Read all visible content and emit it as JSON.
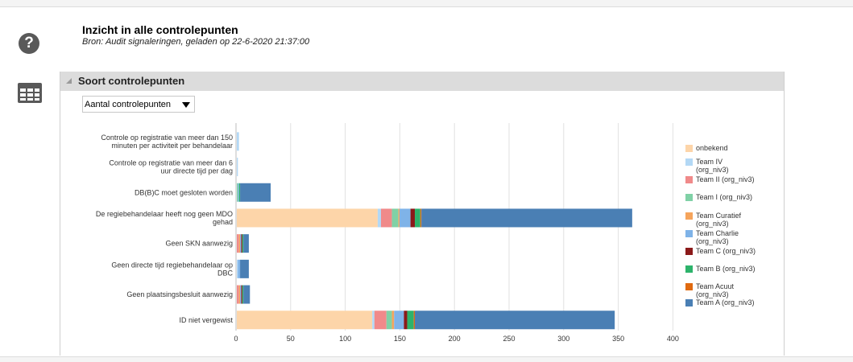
{
  "page": {
    "title": "Inzicht in alle controlepunten",
    "subtitle": "Bron: Audit signaleringen, geladen op 22-6-2020 21:37:00",
    "help_icon_glyph": "?",
    "grid_icon": "table-grid-icon"
  },
  "panel": {
    "title": "Soort controlepunten",
    "dropdown": {
      "selected": "Aantal controlepunten"
    }
  },
  "chart_data": {
    "type": "bar",
    "orientation": "horizontal",
    "stacked": true,
    "categories": [
      [
        "Controle op registratie van meer dan 150",
        "minuten per activiteit per behandelaar"
      ],
      [
        "Controle op registratie van meer dan 6",
        "uur directe tijd per dag"
      ],
      [
        "DB(B)C moet gesloten worden"
      ],
      [
        "De regiebehandelaar heeft nog geen MDO",
        "gehad"
      ],
      [
        "Geen SKN aanwezig"
      ],
      [
        "Geen directe tijd regiebehandelaar op",
        "DBC"
      ],
      [
        "Geen plaatsingsbesluit aanwezig"
      ],
      [
        "ID niet vergewist"
      ]
    ],
    "series": [
      {
        "name": [
          "onbekend"
        ],
        "color": "#fdd5a9",
        "values": [
          0,
          0,
          0,
          129,
          0,
          0,
          0,
          124
        ]
      },
      {
        "name": [
          "Team IV",
          "(org_niv3)"
        ],
        "color": "#b3d8f5",
        "values": [
          2,
          1,
          0,
          3,
          0,
          1,
          0,
          2
        ]
      },
      {
        "name": [
          "Team II (org_niv3)"
        ],
        "color": "#f08a8a",
        "values": [
          0,
          0,
          0,
          10,
          2,
          0,
          2,
          11
        ]
      },
      {
        "name": [
          "Team I (org_niv3)"
        ],
        "color": "#80d1a6",
        "values": [
          0,
          0,
          1,
          6,
          0,
          0,
          0,
          5
        ]
      },
      {
        "name": [
          "Team Curatief",
          "(org_niv3)"
        ],
        "color": "#f5a45c",
        "values": [
          0,
          0,
          0,
          1,
          1,
          0,
          1,
          2
        ]
      },
      {
        "name": [
          "Team Charlie",
          "(org_niv3)"
        ],
        "color": "#7fb3e8",
        "values": [
          0,
          0,
          1,
          10,
          1,
          2,
          1,
          9
        ]
      },
      {
        "name": [
          "Team C (org_niv3)"
        ],
        "color": "#8b1a1a",
        "values": [
          0,
          0,
          0,
          4,
          1,
          0,
          1,
          3
        ]
      },
      {
        "name": [
          "Team B (org_niv3)"
        ],
        "color": "#2db36b",
        "values": [
          0,
          0,
          1,
          5,
          1,
          0,
          1,
          6
        ]
      },
      {
        "name": [
          "Team Acuut",
          "(org_niv3)"
        ],
        "color": "#e06a10",
        "values": [
          0,
          0,
          0,
          1,
          0,
          0,
          0,
          1
        ]
      },
      {
        "name": [
          "Team A (org_niv3)"
        ],
        "color": "#4a7fb4",
        "values": [
          0,
          0,
          28,
          193,
          5,
          8,
          6,
          183
        ]
      }
    ],
    "xlim": [
      0,
      400
    ],
    "xticks": [
      "0",
      "50",
      "100",
      "150",
      "200",
      "250",
      "300",
      "350",
      "400"
    ],
    "grid": true,
    "legend_position": "right"
  }
}
